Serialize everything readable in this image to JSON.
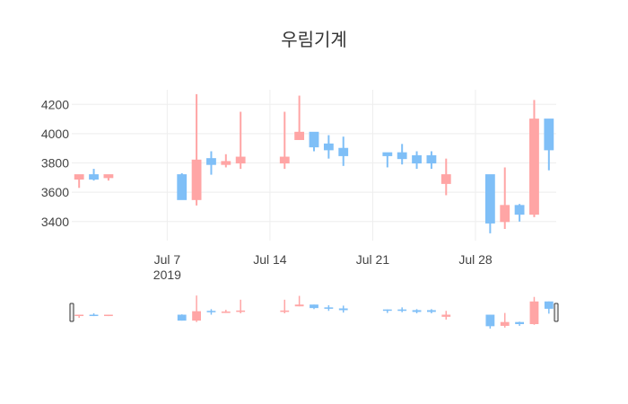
{
  "chart_data": {
    "type": "candlestick",
    "title": "우림기계",
    "increasing_color": "#ffa5a5",
    "decreasing_color": "#7fbff7",
    "grid": true,
    "ylim": [
      3270,
      4300
    ],
    "y_ticks": [
      3400,
      3600,
      3800,
      4000,
      4200
    ],
    "y_tick_labels": [
      "3400",
      "3600",
      "3800",
      "4000",
      "4200"
    ],
    "x_ticks": [
      "2019-07-07",
      "2019-07-14",
      "2019-07-21",
      "2019-07-28"
    ],
    "x_tick_labels": [
      "Jul 7",
      "Jul 14",
      "Jul 21",
      "Jul 28"
    ],
    "x_year_label": "2019",
    "xlim": [
      "2019-07-01",
      "2019-08-02"
    ],
    "candles": [
      {
        "date": "2019-07-01",
        "open": 3690,
        "high": 3720,
        "low": 3630,
        "close": 3720
      },
      {
        "date": "2019-07-02",
        "open": 3720,
        "high": 3760,
        "low": 3680,
        "close": 3690
      },
      {
        "date": "2019-07-03",
        "open": 3700,
        "high": 3720,
        "low": 3680,
        "close": 3720
      },
      {
        "date": "2019-07-08",
        "open": 3720,
        "high": 3730,
        "low": 3550,
        "close": 3550
      },
      {
        "date": "2019-07-09",
        "open": 3550,
        "high": 4270,
        "low": 3510,
        "close": 3820
      },
      {
        "date": "2019-07-10",
        "open": 3830,
        "high": 3880,
        "low": 3720,
        "close": 3790
      },
      {
        "date": "2019-07-11",
        "open": 3790,
        "high": 3860,
        "low": 3770,
        "close": 3810
      },
      {
        "date": "2019-07-12",
        "open": 3800,
        "high": 4150,
        "low": 3760,
        "close": 3840
      },
      {
        "date": "2019-07-15",
        "open": 3800,
        "high": 4150,
        "low": 3760,
        "close": 3840
      },
      {
        "date": "2019-07-16",
        "open": 3960,
        "high": 4260,
        "low": 3960,
        "close": 4010
      },
      {
        "date": "2019-07-17",
        "open": 4010,
        "high": 4010,
        "low": 3880,
        "close": 3910
      },
      {
        "date": "2019-07-18",
        "open": 3930,
        "high": 3990,
        "low": 3830,
        "close": 3890
      },
      {
        "date": "2019-07-19",
        "open": 3900,
        "high": 3980,
        "low": 3780,
        "close": 3850
      },
      {
        "date": "2019-07-22",
        "open": 3870,
        "high": 3870,
        "low": 3770,
        "close": 3850
      },
      {
        "date": "2019-07-23",
        "open": 3870,
        "high": 3930,
        "low": 3790,
        "close": 3830
      },
      {
        "date": "2019-07-24",
        "open": 3850,
        "high": 3880,
        "low": 3760,
        "close": 3800
      },
      {
        "date": "2019-07-25",
        "open": 3850,
        "high": 3880,
        "low": 3760,
        "close": 3800
      },
      {
        "date": "2019-07-26",
        "open": 3660,
        "high": 3830,
        "low": 3580,
        "close": 3720
      },
      {
        "date": "2019-07-29",
        "open": 3720,
        "high": 3720,
        "low": 3320,
        "close": 3390
      },
      {
        "date": "2019-07-30",
        "open": 3400,
        "high": 3770,
        "low": 3350,
        "close": 3510
      },
      {
        "date": "2019-07-31",
        "open": 3510,
        "high": 3520,
        "low": 3400,
        "close": 3450
      },
      {
        "date": "2019-08-01",
        "open": 3450,
        "high": 4230,
        "low": 3430,
        "close": 4100
      },
      {
        "date": "2019-08-02",
        "open": 4100,
        "high": 4100,
        "low": 3750,
        "close": 3890
      }
    ]
  }
}
